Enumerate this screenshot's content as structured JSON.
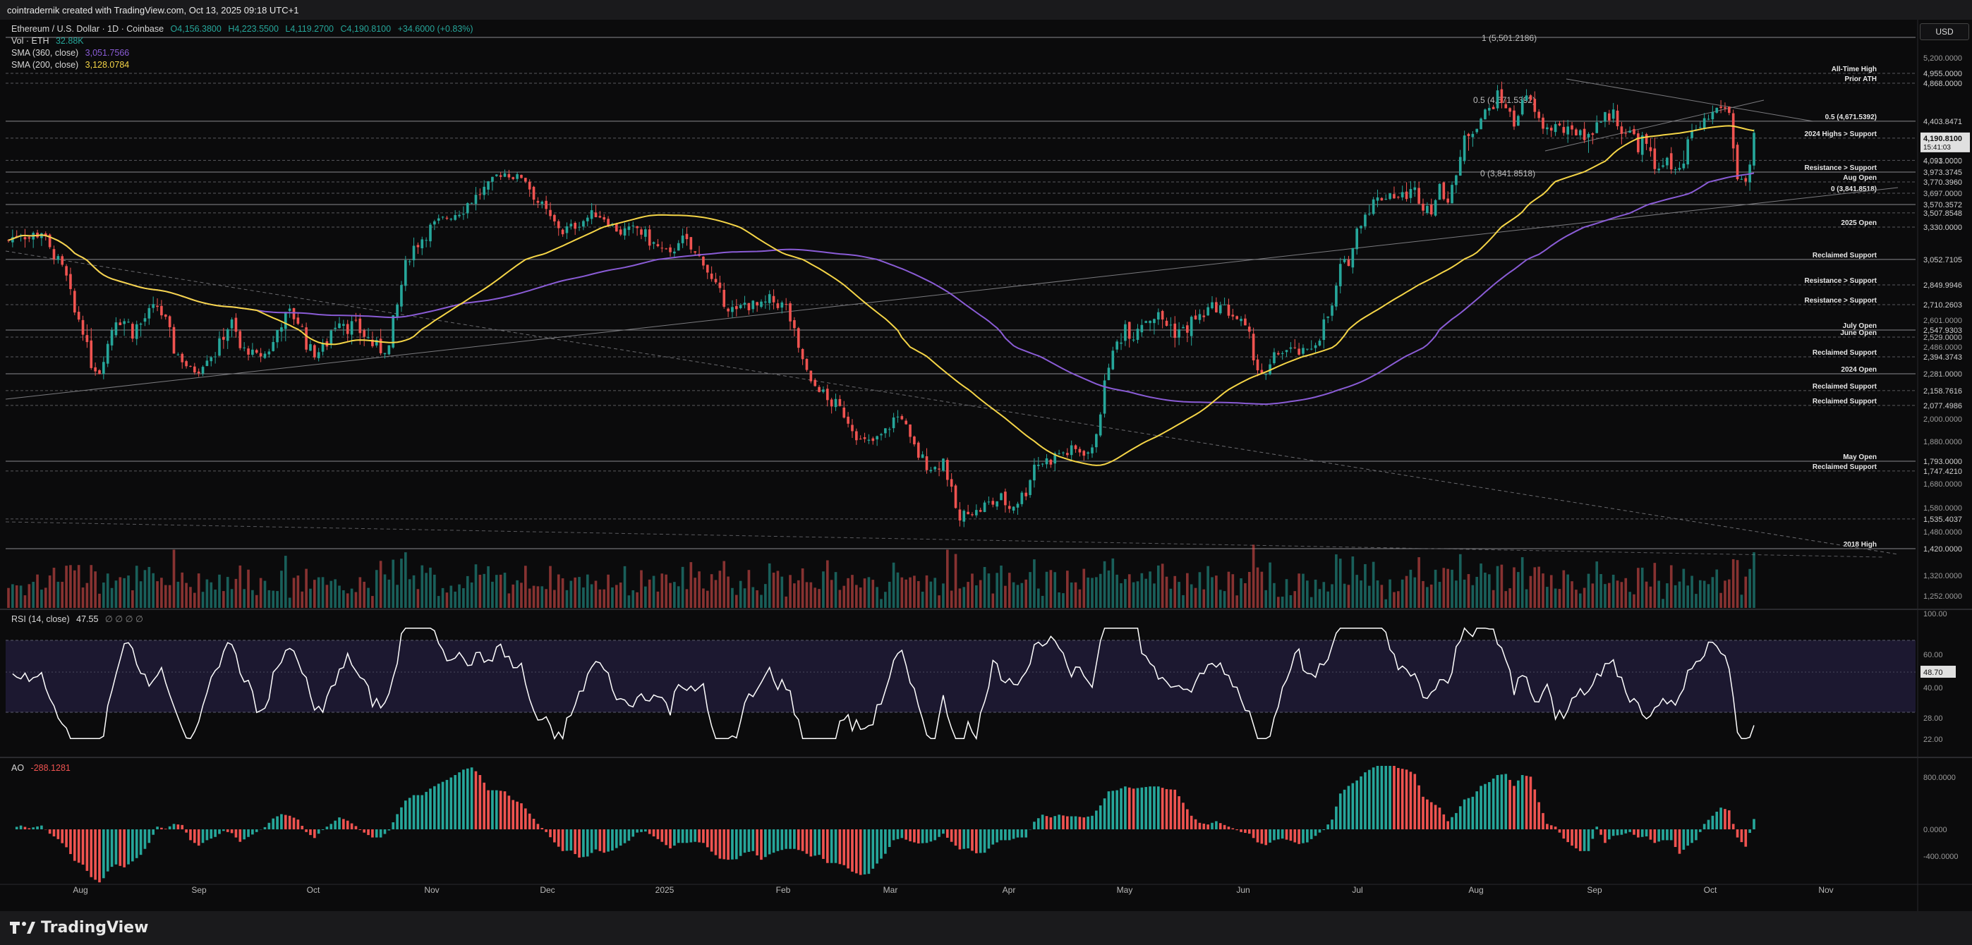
{
  "header": {
    "credit": "cointradernik created with TradingView.com, Oct 13, 2025 09:18 UTC+1"
  },
  "legend": {
    "symbol": "Ethereum / U.S. Dollar · 1D · Coinbase",
    "o": "O4,156.3800",
    "h": "H4,223.5500",
    "l": "L4,119.2700",
    "c": "C4,190.8100",
    "chg": "+34.6000 (+0.83%)",
    "vol_label": "Vol · ETH",
    "vol_value": "32.88K",
    "sma360_label": "SMA (360, close)",
    "sma360_value": "3,051.7566",
    "sma200_label": "SMA (200, close)",
    "sma200_value": "3,128.0784",
    "rsi_label": "RSI (14, close)",
    "rsi_value": "47.55",
    "rsi_extra": "∅ ∅ ∅ ∅",
    "ao_label": "AO",
    "ao_value": "-288.1281"
  },
  "currency_button": "USD",
  "footer": {
    "logo_text": "TradingView"
  },
  "colors": {
    "up": "#26a69a",
    "down": "#ef5350",
    "sma200": "#f5d547",
    "sma360": "#8a5cd6",
    "rsi": "#ffffff",
    "rsi_band": "#1c1830",
    "price_tag": "#e0e0e0"
  },
  "chart_data": {
    "type": "candlestick",
    "title": "Ethereum / U.S. Dollar · 1D · Coinbase",
    "x_ticks": [
      "Aug",
      "Sep",
      "Oct",
      "Nov",
      "Dec",
      "2025",
      "Feb",
      "Mar",
      "Apr",
      "May",
      "Jun",
      "Jul",
      "Aug",
      "Sep",
      "Oct",
      "Nov"
    ],
    "price_axis_ticks": [
      "5,200.0000",
      "4,091.0000",
      "3,697.0000",
      "2,601.0000",
      "2,529.0000",
      "2,486.0000",
      "2,281.0000",
      "2,000.0000",
      "1,880.0000",
      "1,680.0000",
      "1,580.0000",
      "1,480.0000",
      "1,320.0000",
      "1,252.0000"
    ],
    "price_path": [
      [
        0,
        3230
      ],
      [
        3,
        3300
      ],
      [
        5,
        3250
      ],
      [
        8,
        3300
      ],
      [
        10,
        3150
      ],
      [
        12,
        3050
      ],
      [
        14,
        2900
      ],
      [
        16,
        2650
      ],
      [
        18,
        2580
      ],
      [
        20,
        2350
      ],
      [
        22,
        2300
      ],
      [
        24,
        2500
      ],
      [
        26,
        2620
      ],
      [
        28,
        2600
      ],
      [
        30,
        2560
      ],
      [
        32,
        2580
      ],
      [
        34,
        2650
      ],
      [
        36,
        2700
      ],
      [
        38,
        2590
      ],
      [
        40,
        2450
      ],
      [
        42,
        2380
      ],
      [
        44,
        2300
      ],
      [
        46,
        2320
      ],
      [
        48,
        2400
      ],
      [
        50,
        2420
      ],
      [
        52,
        2550
      ],
      [
        54,
        2580
      ],
      [
        56,
        2470
      ],
      [
        58,
        2450
      ],
      [
        60,
        2400
      ],
      [
        62,
        2420
      ],
      [
        64,
        2500
      ],
      [
        66,
        2600
      ],
      [
        68,
        2650
      ],
      [
        70,
        2600
      ],
      [
        72,
        2500
      ],
      [
        74,
        2420
      ],
      [
        76,
        2470
      ],
      [
        78,
        2550
      ],
      [
        80,
        2620
      ],
      [
        82,
        2580
      ],
      [
        84,
        2560
      ],
      [
        86,
        2540
      ],
      [
        88,
        2500
      ],
      [
        90,
        2450
      ],
      [
        92,
        2480
      ],
      [
        94,
        2700
      ],
      [
        96,
        3000
      ],
      [
        98,
        3180
      ],
      [
        100,
        3250
      ],
      [
        102,
        3330
      ],
      [
        104,
        3400
      ],
      [
        106,
        3450
      ],
      [
        108,
        3500
      ],
      [
        110,
        3550
      ],
      [
        112,
        3620
      ],
      [
        114,
        3700
      ],
      [
        116,
        3720
      ],
      [
        118,
        3900
      ],
      [
        120,
        3950
      ],
      [
        122,
        3870
      ],
      [
        124,
        3880
      ],
      [
        126,
        3740
      ],
      [
        128,
        3600
      ],
      [
        130,
        3500
      ],
      [
        132,
        3380
      ],
      [
        134,
        3300
      ],
      [
        136,
        3330
      ],
      [
        138,
        3380
      ],
      [
        140,
        3450
      ],
      [
        142,
        3500
      ],
      [
        144,
        3450
      ],
      [
        146,
        3350
      ],
      [
        148,
        3300
      ],
      [
        150,
        3290
      ],
      [
        152,
        3320
      ],
      [
        154,
        3260
      ],
      [
        156,
        3200
      ],
      [
        158,
        3150
      ],
      [
        160,
        3100
      ],
      [
        162,
        3250
      ],
      [
        164,
        3200
      ],
      [
        166,
        3120
      ],
      [
        168,
        3050
      ],
      [
        170,
        2880
      ],
      [
        172,
        2780
      ],
      [
        174,
        2700
      ],
      [
        176,
        2650
      ],
      [
        178,
        2720
      ],
      [
        180,
        2700
      ],
      [
        182,
        2690
      ],
      [
        184,
        2740
      ],
      [
        186,
        2720
      ],
      [
        188,
        2690
      ],
      [
        190,
        2520
      ],
      [
        192,
        2380
      ],
      [
        194,
        2200
      ],
      [
        196,
        2180
      ],
      [
        198,
        2100
      ],
      [
        200,
        2080
      ],
      [
        202,
        2030
      ],
      [
        204,
        1960
      ],
      [
        206,
        1880
      ],
      [
        208,
        1870
      ],
      [
        210,
        1890
      ],
      [
        212,
        1930
      ],
      [
        214,
        2000
      ],
      [
        216,
        2020
      ],
      [
        218,
        1880
      ],
      [
        220,
        1820
      ],
      [
        222,
        1780
      ],
      [
        224,
        1760
      ],
      [
        226,
        1800
      ],
      [
        228,
        1640
      ],
      [
        230,
        1520
      ],
      [
        232,
        1580
      ],
      [
        234,
        1560
      ],
      [
        236,
        1590
      ],
      [
        238,
        1600
      ],
      [
        240,
        1620
      ],
      [
        242,
        1580
      ],
      [
        244,
        1610
      ],
      [
        246,
        1650
      ],
      [
        248,
        1780
      ],
      [
        250,
        1790
      ],
      [
        252,
        1800
      ],
      [
        254,
        1830
      ],
      [
        256,
        1830
      ],
      [
        258,
        1840
      ],
      [
        260,
        1840
      ],
      [
        262,
        1830
      ],
      [
        264,
        2050
      ],
      [
        266,
        2350
      ],
      [
        268,
        2500
      ],
      [
        270,
        2580
      ],
      [
        272,
        2550
      ],
      [
        274,
        2600
      ],
      [
        276,
        2620
      ],
      [
        278,
        2630
      ],
      [
        280,
        2580
      ],
      [
        282,
        2560
      ],
      [
        284,
        2540
      ],
      [
        286,
        2600
      ],
      [
        288,
        2620
      ],
      [
        290,
        2670
      ],
      [
        292,
        2700
      ],
      [
        294,
        2680
      ],
      [
        296,
        2640
      ],
      [
        298,
        2580
      ],
      [
        300,
        2500
      ],
      [
        302,
        2320
      ],
      [
        304,
        2250
      ],
      [
        306,
        2400
      ],
      [
        308,
        2450
      ],
      [
        310,
        2460
      ],
      [
        312,
        2430
      ],
      [
        314,
        2440
      ],
      [
        316,
        2520
      ],
      [
        318,
        2580
      ],
      [
        320,
        2680
      ],
      [
        322,
        2980
      ],
      [
        324,
        3050
      ],
      [
        326,
        3300
      ],
      [
        328,
        3500
      ],
      [
        330,
        3600
      ],
      [
        332,
        3650
      ],
      [
        334,
        3700
      ],
      [
        336,
        3650
      ],
      [
        338,
        3680
      ],
      [
        340,
        3700
      ],
      [
        342,
        3580
      ],
      [
        344,
        3550
      ],
      [
        346,
        3700
      ],
      [
        348,
        3650
      ],
      [
        350,
        3900
      ],
      [
        352,
        4200
      ],
      [
        354,
        4300
      ],
      [
        356,
        4450
      ],
      [
        358,
        4550
      ],
      [
        360,
        4700
      ],
      [
        362,
        4600
      ],
      [
        364,
        4350
      ],
      [
        366,
        4700
      ],
      [
        368,
        4620
      ],
      [
        370,
        4400
      ],
      [
        372,
        4300
      ],
      [
        374,
        4350
      ],
      [
        376,
        4280
      ],
      [
        378,
        4250
      ],
      [
        380,
        4300
      ],
      [
        382,
        4200
      ],
      [
        384,
        4400
      ],
      [
        386,
        4450
      ],
      [
        388,
        4500
      ],
      [
        390,
        4300
      ],
      [
        392,
        4250
      ],
      [
        394,
        4200
      ],
      [
        396,
        4150
      ],
      [
        398,
        4000
      ],
      [
        400,
        4100
      ],
      [
        402,
        4000
      ],
      [
        404,
        3950
      ],
      [
        406,
        4150
      ],
      [
        408,
        4300
      ],
      [
        410,
        4400
      ],
      [
        412,
        4500
      ],
      [
        414,
        4600
      ],
      [
        416,
        4500
      ],
      [
        418,
        3850
      ],
      [
        420,
        3780
      ],
      [
        422,
        4190
      ]
    ],
    "sma200_y_bars_start_pct": 0,
    "levels": [
      {
        "price": "1 (5,501.2186)",
        "label": ""
      },
      {
        "price": "4,955.0000",
        "label": "All-Time High"
      },
      {
        "price": "4,868.0000",
        "label": "Prior ATH"
      },
      {
        "price": "4,403.8471",
        "label": "0.5 (4,671.5392)"
      },
      {
        "price": "4,190.8100",
        "label": "2024 Highs > Support"
      },
      {
        "price": "4,093.0000",
        "label": ""
      },
      {
        "price": "3,973.3745",
        "label": "Resistance > Support"
      },
      {
        "price": "3,770.3960",
        "label": "Aug Open"
      },
      {
        "price": "3,697.0000",
        "label": "0 (3,841.8518)"
      },
      {
        "price": "3,570.3572",
        "label": ""
      },
      {
        "price": "3,507.8548",
        "label": ""
      },
      {
        "price": "3,330.0000",
        "label": "2025 Open"
      },
      {
        "price": "3,052.7105",
        "label": "Reclaimed Support"
      },
      {
        "price": "2,849.9946",
        "label": "Resistance > Support"
      },
      {
        "price": "2,710.2603",
        "label": "Resistance > Support"
      },
      {
        "price": "2,547.9303",
        "label": "July Open"
      },
      {
        "price": "2,529.0000",
        "label": "June Open"
      },
      {
        "price": "2,394.3743",
        "label": "Reclaimed Support"
      },
      {
        "price": "2,281.0000",
        "label": "2024 Open"
      },
      {
        "price": "2,158.7616",
        "label": "Reclaimed Support"
      },
      {
        "price": "2,077.4986",
        "label": "Reclaimed Support"
      },
      {
        "price": "1,793.0000",
        "label": "May Open"
      },
      {
        "price": "1,747.4210",
        "label": "Reclaimed Support"
      },
      {
        "price": "1,535.4037",
        "label": ""
      },
      {
        "price": "1,420.0000",
        "label": "2018 High"
      }
    ],
    "price_tags": [
      {
        "text": "4,190.8100",
        "sub": "15:41:03"
      }
    ],
    "rsi_ticks": [
      "100.00",
      "60.00",
      "48.70",
      "40.00",
      "28.00",
      "22.00"
    ],
    "ao_ticks": [
      "800.0000",
      "0.0000",
      "-400.0000"
    ]
  }
}
